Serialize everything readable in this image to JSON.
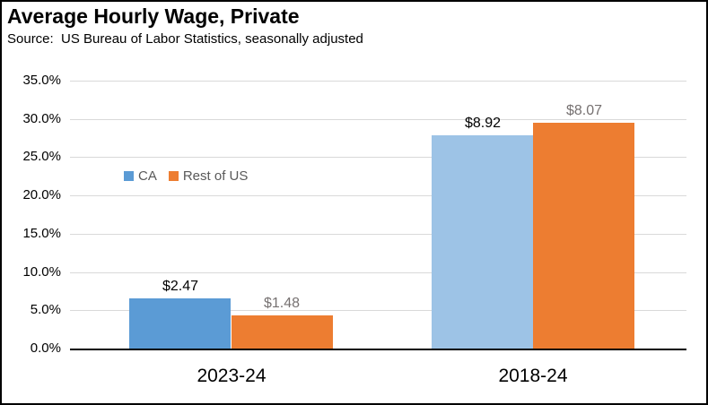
{
  "chart_data": {
    "type": "bar",
    "title": "Average Hourly Wage, Private",
    "subtitle": "Source:  US Bureau of Labor Statistics, seasonally adjusted",
    "categories": [
      "2023-24",
      "2018-24"
    ],
    "series": [
      {
        "name": "CA",
        "values": [
          6.5,
          27.9
        ],
        "labels": [
          "$2.47",
          "$8.92"
        ],
        "bar_colors": [
          "#5B9BD5",
          "#9DC3E6"
        ],
        "legend_color": "#5B9BD5",
        "label_color": "#000000"
      },
      {
        "name": "Rest of US",
        "values": [
          4.3,
          29.5
        ],
        "labels": [
          "$1.48",
          "$8.07"
        ],
        "bar_colors": [
          "#ED7D31",
          "#ED7D31"
        ],
        "legend_color": "#ED7D31",
        "label_color": "#767171"
      }
    ],
    "y_axis": {
      "tick_labels": [
        "35.0%",
        "30.0%",
        "25.0%",
        "20.0%",
        "15.0%",
        "10.0%",
        "5.0%",
        "0.0%"
      ],
      "min": 0,
      "max": 35,
      "step": 5,
      "unit": "%"
    },
    "legend": {
      "position": "inside-left",
      "entries": [
        "CA",
        "Rest of US"
      ]
    },
    "grid": true,
    "colors": {
      "gridline": "#D9D9D9",
      "axis_line": "#000000",
      "frame_border": "#000000",
      "background": "#FFFFFF"
    }
  }
}
